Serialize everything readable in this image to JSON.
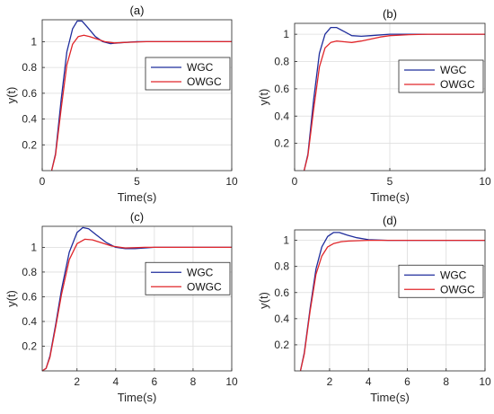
{
  "chart_data": [
    {
      "type": "line",
      "title": "(a)",
      "xlabel": "Time(s)",
      "ylabel": "y(t)",
      "xlim": [
        0,
        10
      ],
      "ylim": [
        0,
        1.17
      ],
      "xticks": [
        0,
        5,
        10
      ],
      "yticks": [
        0.2,
        0.4,
        0.6,
        0.8,
        1
      ],
      "grid": true,
      "legend_position": "right",
      "series": [
        {
          "name": "WGC",
          "color": "#1f2d9c",
          "x": [
            0.5,
            0.7,
            1.0,
            1.3,
            1.6,
            1.85,
            2.1,
            2.4,
            2.8,
            3.2,
            3.6,
            4.0,
            5.0,
            6.0,
            8.0,
            10.0
          ],
          "y": [
            0.0,
            0.13,
            0.55,
            0.92,
            1.1,
            1.16,
            1.16,
            1.11,
            1.04,
            1.0,
            0.985,
            0.99,
            1.0,
            1.0,
            1.0,
            1.0
          ]
        },
        {
          "name": "OWGC",
          "color": "#e0262a",
          "x": [
            0.5,
            0.7,
            1.0,
            1.3,
            1.6,
            1.9,
            2.2,
            2.5,
            2.9,
            3.3,
            3.8,
            4.5,
            5.5,
            7.0,
            10.0
          ],
          "y": [
            0.0,
            0.12,
            0.48,
            0.82,
            0.98,
            1.04,
            1.05,
            1.04,
            1.02,
            1.0,
            0.99,
            0.995,
            1.0,
            1.0,
            1.0
          ]
        }
      ]
    },
    {
      "type": "line",
      "title": "(b)",
      "xlabel": "Time(s)",
      "ylabel": "y(t)",
      "xlim": [
        0,
        10
      ],
      "ylim": [
        0,
        1.08
      ],
      "xticks": [
        0,
        5,
        10
      ],
      "yticks": [
        0.2,
        0.4,
        0.6,
        0.8,
        1
      ],
      "grid": true,
      "legend_position": "right",
      "series": [
        {
          "name": "WGC",
          "color": "#1f2d9c",
          "x": [
            0.5,
            0.7,
            1.0,
            1.3,
            1.6,
            1.9,
            2.2,
            2.6,
            3.0,
            3.5,
            4.0,
            5.0,
            6.0,
            8.0,
            10.0
          ],
          "y": [
            0.0,
            0.12,
            0.52,
            0.86,
            1.0,
            1.05,
            1.05,
            1.02,
            0.99,
            0.985,
            0.99,
            1.0,
            1.0,
            1.0,
            1.0
          ]
        },
        {
          "name": "OWGC",
          "color": "#e0262a",
          "x": [
            0.5,
            0.7,
            1.0,
            1.3,
            1.6,
            1.9,
            2.2,
            2.6,
            3.0,
            3.5,
            4.0,
            4.5,
            5.0,
            6.0,
            7.0,
            8.0,
            10.0
          ],
          "y": [
            0.0,
            0.11,
            0.45,
            0.76,
            0.9,
            0.94,
            0.95,
            0.945,
            0.94,
            0.95,
            0.965,
            0.98,
            0.99,
            0.997,
            1.0,
            1.0,
            1.0
          ]
        }
      ]
    },
    {
      "type": "line",
      "title": "(c)",
      "xlabel": "Time(s)",
      "ylabel": "y(t)",
      "xlim": [
        0.2,
        10
      ],
      "ylim": [
        0,
        1.17
      ],
      "xticks": [
        2,
        4,
        6,
        8,
        10
      ],
      "yticks": [
        0.2,
        0.4,
        0.6,
        0.8,
        1
      ],
      "grid": true,
      "legend_position": "right",
      "series": [
        {
          "name": "WGC",
          "color": "#1f2d9c",
          "x": [
            0.2,
            0.4,
            0.6,
            0.9,
            1.2,
            1.6,
            2.0,
            2.3,
            2.6,
            3.0,
            3.5,
            4.0,
            4.5,
            5.0,
            6.0,
            8.0,
            10.0
          ],
          "y": [
            0.0,
            0.02,
            0.12,
            0.38,
            0.66,
            0.96,
            1.12,
            1.16,
            1.15,
            1.1,
            1.04,
            1.0,
            0.99,
            0.99,
            1.0,
            1.0,
            1.0
          ]
        },
        {
          "name": "OWGC",
          "color": "#e0262a",
          "x": [
            0.2,
            0.4,
            0.6,
            0.9,
            1.2,
            1.6,
            2.0,
            2.4,
            2.8,
            3.2,
            3.8,
            4.5,
            5.5,
            7.0,
            10.0
          ],
          "y": [
            0.0,
            0.02,
            0.11,
            0.36,
            0.62,
            0.9,
            1.03,
            1.065,
            1.06,
            1.04,
            1.01,
            0.995,
            1.0,
            1.0,
            1.0
          ]
        }
      ]
    },
    {
      "type": "line",
      "title": "(d)",
      "xlabel": "Time(s)",
      "ylabel": "y(t)",
      "xlim": [
        0.2,
        10
      ],
      "ylim": [
        0,
        1.08
      ],
      "xticks": [
        2,
        4,
        6,
        8,
        10
      ],
      "yticks": [
        0.2,
        0.4,
        0.6,
        0.8,
        1
      ],
      "grid": true,
      "legend_position": "right",
      "series": [
        {
          "name": "WGC",
          "color": "#1f2d9c",
          "x": [
            0.5,
            0.7,
            1.0,
            1.3,
            1.6,
            1.9,
            2.2,
            2.5,
            2.9,
            3.4,
            4.0,
            5.0,
            6.0,
            8.0,
            10.0
          ],
          "y": [
            0.0,
            0.14,
            0.48,
            0.78,
            0.95,
            1.03,
            1.06,
            1.06,
            1.04,
            1.02,
            1.005,
            1.0,
            1.0,
            1.0,
            1.0
          ]
        },
        {
          "name": "OWGC",
          "color": "#e0262a",
          "x": [
            0.5,
            0.7,
            1.0,
            1.3,
            1.6,
            1.9,
            2.2,
            2.6,
            3.0,
            4.0,
            5.0,
            7.0,
            10.0
          ],
          "y": [
            0.0,
            0.13,
            0.46,
            0.74,
            0.88,
            0.95,
            0.975,
            0.99,
            0.995,
            1.0,
            1.0,
            1.0,
            1.0
          ]
        }
      ]
    }
  ]
}
